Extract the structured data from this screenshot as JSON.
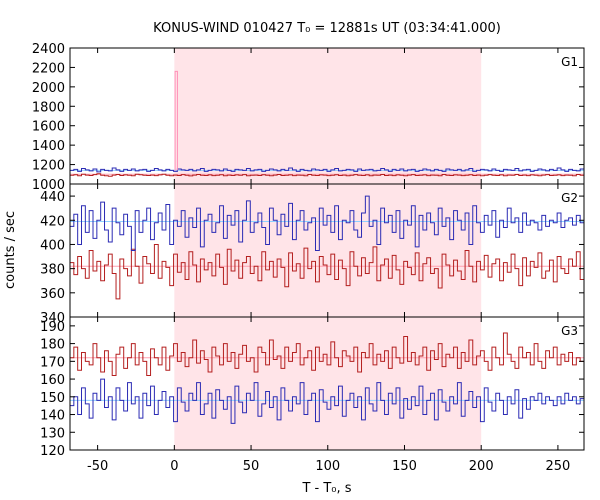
{
  "chart_data": {
    "type": "line",
    "title": "KONUS-WIND 010427 T₀ = 12881s UT (03:34:41.000)",
    "xlabel": "T - T₀, s",
    "ylabel": "counts / sec",
    "xlim": [
      -68,
      267
    ],
    "xticks": [
      -50,
      0,
      50,
      100,
      150,
      200,
      250
    ],
    "shaded_interval": [
      0,
      200
    ],
    "colors": {
      "red_series": "#b41f1f",
      "blue_series": "#2b2bb4",
      "pink_series": "#ff8fb8",
      "blue_background": "#8fd0ff",
      "red_background": "#ffa0b0",
      "shading": "#ffe4e8"
    },
    "panels": [
      {
        "name": "G1",
        "ylim": [
          1000,
          2400
        ],
        "yticks": [
          1000,
          1200,
          1400,
          1600,
          1800,
          2000,
          2200,
          2400
        ],
        "background_blue": 1140,
        "background_red": 1100,
        "series": [
          {
            "color": "red",
            "step": 2.5,
            "values": [
              1090,
              1095,
              1085,
              1100,
              1092,
              1088,
              1096,
              1105,
              1090,
              1085,
              1080,
              1092,
              1098,
              1088,
              1094,
              1090,
              1085,
              1100,
              1095,
              1090,
              1088,
              1092,
              1086,
              1094,
              1100,
              1090,
              1085,
              1092,
              1088,
              1096,
              1090,
              1084,
              1092,
              1098,
              1090,
              1088,
              1094,
              1086,
              1090,
              1095,
              1085,
              1092,
              1088,
              1094,
              1090,
              1096,
              1085,
              1090,
              1092,
              1088,
              1095,
              1090,
              1085,
              1092,
              1098,
              1088,
              1090,
              1094,
              1086,
              1092,
              1090,
              1085,
              1098,
              1090,
              1088,
              1094,
              1092,
              1086,
              1090,
              1095,
              1088,
              1092,
              1085,
              1090,
              1096,
              1090,
              1088,
              1094,
              1085,
              1092,
              1090,
              1098,
              1088,
              1092,
              1086,
              1094,
              1090,
              1085,
              1092,
              1096,
              1088,
              1090,
              1094,
              1086,
              1092,
              1090,
              1085,
              1098,
              1090,
              1088,
              1094,
              1092,
              1086,
              1090,
              1095,
              1088,
              1092,
              1085,
              1090,
              1096,
              1090,
              1088,
              1094,
              1085,
              1092,
              1090,
              1098,
              1088,
              1092,
              1086,
              1094,
              1090,
              1085,
              1092,
              1096,
              1088,
              1090,
              1094,
              1086,
              1092,
              1090,
              1085,
              1098,
              1090
            ]
          },
          {
            "color": "blue",
            "step": 2.5,
            "values": [
              1140,
              1150,
              1130,
              1160,
              1145,
              1135,
              1155,
              1125,
              1150,
              1140,
              1135,
              1165,
              1145,
              1130,
              1150,
              1140,
              1155,
              1135,
              1145,
              1150,
              1130,
              1140,
              1160,
              1145,
              1135,
              1150,
              1140,
              1130,
              1155,
              1145,
              1140,
              1150,
              1135,
              1145,
              1160,
              1130,
              1140,
              1150,
              1145,
              1135,
              1155,
              1140,
              1130,
              1150,
              1145,
              1140,
              1160,
              1135,
              1145,
              1150,
              1130,
              1140,
              1155,
              1145,
              1135,
              1150,
              1140,
              1165,
              1145,
              1130,
              1150,
              1140,
              1135,
              1155,
              1145,
              1140,
              1150,
              1130,
              1145,
              1160,
              1135,
              1140,
              1150,
              1145,
              1130,
              1155,
              1140,
              1145,
              1150,
              1135,
              1140,
              1160,
              1145,
              1130,
              1150,
              1140,
              1155,
              1135,
              1145,
              1150,
              1130,
              1140,
              1155,
              1145,
              1135,
              1150,
              1140,
              1130,
              1155,
              1145,
              1140,
              1150,
              1135,
              1145,
              1160,
              1130,
              1140,
              1150,
              1145,
              1135,
              1155,
              1140,
              1130,
              1150,
              1145,
              1140,
              1160,
              1135,
              1145,
              1150,
              1130,
              1140,
              1155,
              1145,
              1135,
              1150,
              1140,
              1165,
              1145,
              1130,
              1150,
              1140,
              1135,
              1155
            ]
          },
          {
            "color": "pink",
            "x": [
              0,
              0.5,
              1,
              2
            ],
            "values": [
              1140,
              2160,
              2160,
              1140
            ]
          }
        ]
      },
      {
        "name": "G2",
        "ylim": [
          340,
          450
        ],
        "yticks": [
          340,
          360,
          380,
          400,
          420,
          440
        ],
        "background_blue": 419,
        "background_red": 382,
        "series": [
          {
            "color": "red",
            "step": 2.5,
            "values": [
              385,
              375,
              390,
              380,
              372,
              395,
              378,
              386,
              370,
              383,
              392,
              376,
              355,
              388,
              380,
              374,
              396,
              382,
              368,
              390,
              384,
              376,
              400,
              372,
              386,
              381,
              366,
              392,
              377,
              385,
              371,
              394,
              383,
              369,
              388,
              379,
              385,
              374,
              392,
              381,
              367,
              396,
              378,
              387,
              372,
              385,
              390,
              376,
              382,
              370,
              394,
              379,
              386,
              373,
              388,
              381,
              365,
              393,
              378,
              384,
              372,
              397,
              380,
              386,
              369,
              390,
              383,
              375,
              392,
              371,
              387,
              380,
              366,
              394,
              382,
              374,
              389,
              376,
              385,
              398,
              370,
              383,
              388,
              372,
              391,
              379,
              367,
              386,
              381,
              375,
              393,
              370,
              384,
              389,
              376,
              380,
              364,
              392,
              383,
              374,
              387,
              378,
              371,
              395,
              382,
              369,
              386,
              379,
              391,
              373,
              384,
              388,
              370,
              385,
              377,
              392,
              380,
              366,
              389,
              374,
              386,
              381,
              393,
              372,
              378,
              387,
              369,
              390,
              380,
              376,
              388,
              382,
              394,
              371
            ]
          },
          {
            "color": "blue",
            "step": 2.5,
            "values": [
              415,
              425,
              400,
              432,
              410,
              428,
              405,
              420,
              435,
              412,
              402,
              430,
              418,
              408,
              425,
              415,
              395,
              428,
              410,
              420,
              430,
              404,
              418,
              426,
              412,
              433,
              400,
              420,
              415,
              428,
              406,
              422,
              414,
              430,
              398,
              420,
              425,
              410,
              418,
              432,
              405,
              424,
              416,
              428,
              402,
              420,
              436,
              410,
              418,
              426,
              414,
              400,
              430,
              420,
              408,
              425,
              415,
              434,
              404,
              420,
              428,
              412,
              418,
              422,
              395,
              430,
              416,
              424,
              410,
              432,
              404,
              420,
              418,
              428,
              412,
              406,
              426,
              440,
              415,
              420,
              400,
              430,
              418,
              424,
              410,
              428,
              405,
              420,
              416,
              432,
              398,
              424,
              412,
              426,
              418,
              408,
              430,
              415,
              422,
              404,
              428,
              420,
              412,
              426,
              400,
              432,
              418,
              410,
              424,
              416,
              428,
              406,
              420,
              414,
              430,
              418,
              422,
              410,
              426,
              416,
              420,
              418,
              412,
              424,
              415,
              420,
              418,
              426,
              414,
              420,
              422,
              416,
              424,
              418
            ]
          }
        ]
      },
      {
        "name": "G3",
        "ylim": [
          120,
          195
        ],
        "yticks": [
          120,
          130,
          140,
          150,
          160,
          170,
          180,
          190
        ],
        "background_blue": 148,
        "background_red": 172,
        "series": [
          {
            "color": "red",
            "step": 2.5,
            "values": [
              172,
              178,
              165,
              175,
              170,
              168,
              180,
              172,
              164,
              176,
              170,
              162,
              174,
              178,
              166,
              172,
              180,
              168,
              175,
              170,
              162,
              177,
              172,
              168,
              178,
              165,
              173,
              180,
              170,
              175,
              167,
              172,
              182,
              169,
              176,
              171,
              164,
              178,
              173,
              168,
              180,
              170,
              175,
              166,
              174,
              179,
              170,
              172,
              164,
              178,
              175,
              168,
              182,
              171,
              173,
              166,
              178,
              170,
              175,
              180,
              168,
              172,
              176,
              165,
              178,
              170,
              174,
              168,
              181,
              172,
              167,
              176,
              173,
              170,
              178,
              164,
              175,
              172,
              180,
              168,
              174,
              170,
              176,
              166,
              178,
              172,
              169,
              184,
              170,
              175,
              168,
              173,
              178,
              165,
              176,
              171,
              180,
              167,
              174,
              172,
              178,
              166,
              175,
              170,
              182,
              168,
              173,
              176,
              170,
              165,
              178,
              172,
              168,
              186,
              174,
              170,
              166,
              178,
              172,
              175,
              168,
              180,
              170,
              166,
              176,
              172,
              178,
              168,
              174,
              170,
              175,
              168,
              172,
              170
            ]
          },
          {
            "color": "blue",
            "step": 2.5,
            "values": [
              145,
              150,
              140,
              155,
              146,
              138,
              152,
              148,
              160,
              144,
              150,
              137,
              155,
              148,
              142,
              158,
              146,
              150,
              138,
              152,
              145,
              156,
              140,
              148,
              153,
              144,
              150,
              136,
              155,
              147,
              142,
              152,
              148,
              158,
              140,
              146,
              152,
              138,
              154,
              148,
              143,
              150,
              135,
              156,
              147,
              141,
              152,
              148,
              158,
              139,
              146,
              153,
              144,
              150,
              137,
              155,
              148,
              142,
              150,
              146,
              158,
              140,
              148,
              152,
              136,
              154,
              147,
              143,
              150,
              145,
              156,
              139,
              148,
              152,
              144,
              150,
              137,
              155,
              146,
              142,
              158,
              148,
              140,
              152,
              146,
              155,
              138,
              149,
              143,
              150,
              145,
              156,
              140,
              148,
              152,
              137,
              154,
              147,
              142,
              150,
              146,
              158,
              139,
              148,
              153,
              144,
              150,
              136,
              155,
              147,
              142,
              152,
              148,
              140,
              150,
              146,
              154,
              138,
              149,
              143,
              150,
              148,
              152,
              146,
              150,
              148,
              145,
              150,
              146,
              152,
              148,
              150,
              146,
              149
            ]
          }
        ]
      }
    ]
  }
}
